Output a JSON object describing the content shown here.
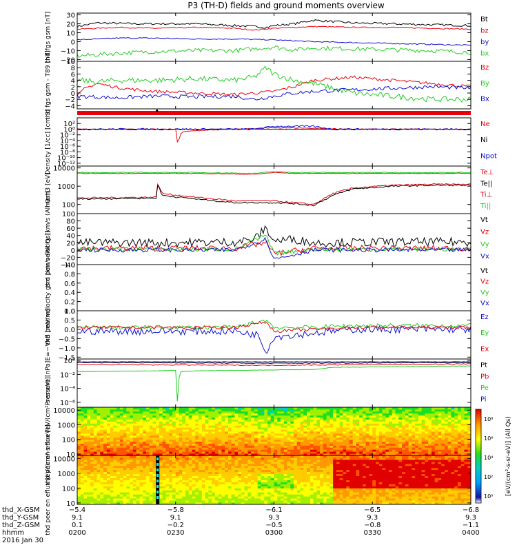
{
  "title": "P3 (TH-D) fields and ground moments overview",
  "colors": {
    "black": "#000000",
    "red": "#e8000b",
    "green": "#22cc22",
    "blue": "#1010d0"
  },
  "chart_data": [
    {
      "type": "line",
      "ylabel": "thd fgs gsm [nT]",
      "ylim": [
        -22,
        32
      ],
      "yticks": [
        {
          "v": 30,
          "t": "30"
        },
        {
          "v": 20,
          "t": "20"
        },
        {
          "v": 10,
          "t": "10"
        },
        {
          "v": 0,
          "t": "0"
        },
        {
          "v": -10,
          "t": "−10"
        },
        {
          "v": -20,
          "t": "−20"
        }
      ],
      "series": [
        {
          "name": "Bt",
          "color": "black",
          "x": [
            0,
            0.05,
            0.15,
            0.25,
            0.3,
            0.4,
            0.45,
            0.48,
            0.5,
            0.55,
            0.6,
            0.7,
            0.8,
            0.9,
            1
          ],
          "y": [
            17,
            21,
            20,
            20,
            20,
            18,
            17,
            16,
            18,
            20,
            24,
            21,
            20,
            19,
            18
          ],
          "noise": 1.2
        },
        {
          "name": "bz",
          "color": "red",
          "x": [
            0,
            0.1,
            0.2,
            0.3,
            0.4,
            0.45,
            0.5,
            0.55,
            0.6,
            0.7,
            0.8,
            0.9,
            1
          ],
          "y": [
            14,
            16,
            15,
            16,
            15,
            13,
            15,
            16,
            17,
            16,
            16,
            15,
            14
          ],
          "noise": 0.6
        },
        {
          "name": "by",
          "color": "blue",
          "x": [
            0,
            0.1,
            0.2,
            0.3,
            0.4,
            0.5,
            0.6,
            0.7,
            0.8,
            0.9,
            1
          ],
          "y": [
            2,
            4,
            4,
            3,
            3,
            2,
            0,
            -1,
            -2,
            -3,
            -4
          ],
          "noise": 0.6
        },
        {
          "name": "bx",
          "color": "green",
          "x": [
            0,
            0.1,
            0.2,
            0.3,
            0.4,
            0.45,
            0.5,
            0.55,
            0.6,
            0.7,
            0.8,
            0.9,
            1
          ],
          "y": [
            -16,
            -13,
            -11,
            -10,
            -10,
            -8,
            -6,
            -9,
            -7,
            -8,
            -9,
            -10,
            -12
          ],
          "noise": 2.4
        }
      ]
    },
    {
      "type": "line",
      "ylabel": "thd fgs gsm - T89 [nT]",
      "ylim": [
        -5,
        10
      ],
      "yticks": [
        {
          "v": 10,
          "t": "10"
        },
        {
          "v": 8,
          "t": "8"
        },
        {
          "v": 6,
          "t": "6"
        },
        {
          "v": 4,
          "t": "4"
        },
        {
          "v": 2,
          "t": "2"
        },
        {
          "v": 0,
          "t": "0"
        },
        {
          "v": -2,
          "t": "−2"
        },
        {
          "v": -4,
          "t": "−4"
        }
      ],
      "series": [
        {
          "name": "Bz",
          "color": "red",
          "x": [
            0,
            0.02,
            0.05,
            0.1,
            0.15,
            0.2,
            0.3,
            0.4,
            0.45,
            0.5,
            0.55,
            0.6,
            0.7,
            0.8,
            0.9,
            1
          ],
          "y": [
            -1,
            1.5,
            3,
            1.8,
            1,
            0.5,
            0,
            -0.5,
            0,
            0.5,
            2,
            4,
            5,
            4,
            3,
            2
          ],
          "noise": 0.5
        },
        {
          "name": "By",
          "color": "green",
          "x": [
            0,
            0.05,
            0.1,
            0.2,
            0.3,
            0.4,
            0.45,
            0.48,
            0.5,
            0.55,
            0.6,
            0.7,
            0.8,
            0.9,
            1
          ],
          "y": [
            4,
            3.5,
            4,
            4,
            4.5,
            4,
            5,
            8,
            6,
            4,
            3,
            0,
            -1,
            -2,
            -2
          ],
          "noise": 0.9
        },
        {
          "name": "Bx",
          "color": "blue",
          "x": [
            0,
            0.1,
            0.2,
            0.3,
            0.4,
            0.45,
            0.5,
            0.55,
            0.6,
            0.7,
            0.8,
            0.9,
            1
          ],
          "y": [
            -1,
            -1.5,
            -1,
            -1.2,
            -1,
            -2,
            -1,
            0,
            0.5,
            1,
            1.5,
            2,
            1.5
          ],
          "noise": 0.6
        }
      ]
    },
    {
      "type": "bar",
      "ylabel": "",
      "segments": [
        {
          "from": 0,
          "to": 1,
          "color": "red"
        }
      ],
      "marks": [
        {
          "from": 0.2,
          "to": 0.205,
          "color": "black"
        }
      ]
    },
    {
      "type": "line",
      "ylabel": "Density [1/cc] [cm-3]",
      "log": true,
      "ylim": [
        -13,
        4
      ],
      "yticks": [
        {
          "v": 2,
          "t": "10²"
        },
        {
          "v": 0,
          "t": "10⁰"
        },
        {
          "v": -2,
          "t": "10⁻²"
        },
        {
          "v": -4,
          "t": "10⁻⁴"
        },
        {
          "v": -6,
          "t": "10⁻⁶"
        },
        {
          "v": -8,
          "t": "10⁻⁸"
        },
        {
          "v": -10,
          "t": "10⁻¹⁰"
        },
        {
          "v": -12,
          "t": "10⁻¹²"
        }
      ],
      "series": [
        {
          "name": "Ne",
          "color": "red",
          "x": [
            0,
            0.25,
            0.255,
            0.265,
            0.3,
            0.4,
            0.5,
            0.6,
            0.7,
            0.8,
            1
          ],
          "y": [
            0,
            0,
            -5,
            -1,
            -0.5,
            0,
            0.5,
            0.3,
            0,
            0,
            0
          ],
          "noise": 0.15
        },
        {
          "name": "Ni",
          "color": "black",
          "x": [
            0,
            0.3,
            0.5,
            0.6,
            0.8,
            1
          ],
          "y": [
            0,
            0,
            0,
            0,
            0,
            0
          ],
          "noise": 0.05
        },
        {
          "name": "Npot",
          "color": "blue",
          "x": [
            0.45,
            0.5,
            0.55,
            0.6,
            0.65
          ],
          "y": [
            0,
            1,
            1,
            1,
            0
          ],
          "noise": 0.3
        }
      ]
    },
    {
      "type": "line",
      "ylabel": "mom3 [eV]",
      "log": true,
      "ylim": [
        1.5,
        4.1
      ],
      "yticks": [
        {
          "v": 4,
          "t": "10000"
        },
        {
          "v": 3,
          "t": "1000"
        },
        {
          "v": 2,
          "t": "100"
        }
      ],
      "series": [
        {
          "name": "Te⊥",
          "color": "red",
          "x": [
            0,
            0.2,
            0.205,
            0.215,
            0.3,
            0.4,
            0.5,
            0.55,
            0.6,
            0.65,
            0.7,
            0.8,
            0.9,
            1
          ],
          "y": [
            2.35,
            2.4,
            3.2,
            2.6,
            2.4,
            2.2,
            2.2,
            2.1,
            2.0,
            2.6,
            2.9,
            3.05,
            3.1,
            3.1
          ],
          "noise": 0.04
        },
        {
          "name": "Te||",
          "color": "black",
          "x": [
            0,
            0.2,
            0.205,
            0.215,
            0.3,
            0.4,
            0.5,
            0.55,
            0.6,
            0.65,
            0.7,
            0.8,
            0.9,
            1
          ],
          "y": [
            2.3,
            2.35,
            3.1,
            2.5,
            2.3,
            2.1,
            2.1,
            2.05,
            1.95,
            2.5,
            2.85,
            3.0,
            3.05,
            3.05
          ],
          "noise": 0.04
        },
        {
          "name": "Ti⊥",
          "color": "red",
          "x": [
            0,
            0.3,
            0.45,
            0.5,
            0.55,
            0.6,
            1
          ],
          "y": [
            3.7,
            3.7,
            3.65,
            3.75,
            3.7,
            3.7,
            3.7
          ],
          "noise": 0.02
        },
        {
          "name": "Ti||",
          "color": "green",
          "x": [
            0,
            0.3,
            0.45,
            0.5,
            0.55,
            0.6,
            1
          ],
          "y": [
            3.75,
            3.75,
            3.7,
            3.8,
            3.75,
            3.75,
            3.75
          ],
          "noise": 0.02
        }
      ]
    },
    {
      "type": "line",
      "ylabel": "thd peir velocity [km/s (All Qs)]",
      "ylim": [
        -40,
        100
      ],
      "yticks": [
        {
          "v": 100,
          "t": "100"
        },
        {
          "v": 80,
          "t": "80"
        },
        {
          "v": 60,
          "t": "60"
        },
        {
          "v": 40,
          "t": "40"
        },
        {
          "v": 20,
          "t": "20"
        },
        {
          "v": 0,
          "t": "0"
        },
        {
          "v": -20,
          "t": "−20"
        },
        {
          "v": -40,
          "t": "−40"
        }
      ],
      "series": [
        {
          "name": "Vt",
          "color": "black",
          "x": [
            0,
            0.2,
            0.4,
            0.45,
            0.48,
            0.5,
            0.55,
            0.6,
            0.8,
            1
          ],
          "y": [
            20,
            20,
            22,
            30,
            60,
            25,
            30,
            20,
            22,
            22
          ],
          "noise": 12
        },
        {
          "name": "Vz",
          "color": "red",
          "x": [
            0,
            0.4,
            0.48,
            0.5,
            0.6,
            1
          ],
          "y": [
            5,
            5,
            20,
            -10,
            5,
            5
          ],
          "noise": 8
        },
        {
          "name": "Vy",
          "color": "green",
          "x": [
            0,
            0.4,
            0.48,
            0.5,
            0.6,
            1
          ],
          "y": [
            2,
            2,
            40,
            -10,
            2,
            2
          ],
          "noise": 6
        },
        {
          "name": "Vx",
          "color": "blue",
          "x": [
            0,
            0.4,
            0.48,
            0.5,
            0.6,
            1
          ],
          "y": [
            0,
            0,
            30,
            -25,
            0,
            0
          ],
          "noise": 6
        }
      ]
    },
    {
      "type": "line",
      "ylabel": "thd peer velocity gsm [km/s (All Qs)]",
      "ylim": [
        0,
        1
      ],
      "yticks": [
        {
          "v": 1,
          "t": "1.0"
        },
        {
          "v": 0.8,
          "t": "0.8"
        },
        {
          "v": 0.6,
          "t": "0.6"
        },
        {
          "v": 0.4,
          "t": "0.4"
        },
        {
          "v": 0.2,
          "t": "0.2"
        },
        {
          "v": 0,
          "t": "0.0"
        }
      ],
      "series": [
        {
          "name": "Vt",
          "color": "black",
          "x": [],
          "y": [],
          "noise": 0
        },
        {
          "name": "Vz",
          "color": "red",
          "x": [],
          "y": [],
          "noise": 0
        },
        {
          "name": "Vy",
          "color": "green",
          "x": [],
          "y": [],
          "noise": 0
        },
        {
          "name": "Vx",
          "color": "blue",
          "x": [],
          "y": [],
          "noise": 0
        }
      ]
    },
    {
      "type": "line",
      "ylabel": "E=−VxB [mV/m]",
      "ylim": [
        -1.6,
        1.0
      ],
      "yticks": [
        {
          "v": 1.0,
          "t": "1.0"
        },
        {
          "v": 0.5,
          "t": "0.5"
        },
        {
          "v": 0,
          "t": "0.0"
        },
        {
          "v": -0.5,
          "t": "−0.5"
        },
        {
          "v": -1.0,
          "t": "−1.0"
        },
        {
          "v": -1.5,
          "t": "−1.5"
        }
      ],
      "series": [
        {
          "name": "Ez",
          "color": "blue",
          "x": [
            0,
            0.4,
            0.46,
            0.48,
            0.5,
            0.6,
            0.7,
            0.8,
            1
          ],
          "y": [
            -0.1,
            -0.1,
            -0.3,
            -1.2,
            -0.4,
            -0.2,
            0,
            0,
            0
          ],
          "noise": 0.2
        },
        {
          "name": "Ey",
          "color": "green",
          "x": [
            0,
            0.4,
            0.48,
            0.5,
            0.6,
            0.7,
            1
          ],
          "y": [
            0.1,
            0.1,
            0.5,
            0.1,
            0.1,
            0.2,
            0.2
          ],
          "noise": 0.12
        },
        {
          "name": "Ex",
          "color": "red",
          "x": [
            0,
            0.4,
            0.48,
            0.5,
            0.6,
            0.7,
            1
          ],
          "y": [
            0.1,
            0.1,
            0.4,
            -0.1,
            0,
            0.1,
            0.1
          ],
          "noise": 0.08
        }
      ]
    },
    {
      "type": "line",
      "ylabel": "Pressure [nPa]",
      "log": true,
      "ylim": [
        -6.7,
        0.2
      ],
      "yticks": [
        {
          "v": 0,
          "t": "10⁰"
        },
        {
          "v": -2,
          "t": "10⁻²"
        },
        {
          "v": -4,
          "t": "10⁻⁴"
        },
        {
          "v": -6,
          "t": "10⁻⁶"
        }
      ],
      "series": [
        {
          "name": "Pt",
          "color": "black",
          "x": [
            0,
            0.5,
            1
          ],
          "y": [
            -0.3,
            -0.4,
            -0.3
          ],
          "noise": 0.05
        },
        {
          "name": "Pb",
          "color": "red",
          "x": [
            0,
            0.5,
            1
          ],
          "y": [
            -0.6,
            -0.7,
            -0.5
          ],
          "noise": 0.05
        },
        {
          "name": "Pe",
          "color": "green",
          "x": [
            0,
            0.2,
            0.25,
            0.255,
            0.26,
            0.3,
            0.6,
            0.65,
            1
          ],
          "y": [
            -1.6,
            -1.5,
            -1.4,
            -6.3,
            -1.6,
            -1.5,
            -1.3,
            -1.0,
            -0.8
          ],
          "noise": 0.03
        },
        {
          "name": "Pi",
          "color": "blue",
          "x": [
            0,
            1
          ],
          "y": [
            -0.2,
            -0.2
          ],
          "noise": 0.03
        }
      ]
    },
    {
      "type": "heatmap",
      "ylabel": "thd peir en eflux [eV/(cm²-s-sr-eV)]",
      "log": true,
      "ylim": [
        0.9,
        4.2
      ],
      "yticks": [
        {
          "v": 4,
          "t": "10000"
        },
        {
          "v": 3,
          "t": "1000"
        },
        {
          "v": 2,
          "t": "100"
        },
        {
          "v": 1,
          "t": "10"
        }
      ]
    },
    {
      "type": "heatmap",
      "ylabel": "thd peer en eflux [eV/(cm²-s-sr-eV)]",
      "log": true,
      "ylim": [
        0.9,
        4.2
      ],
      "yticks": [
        {
          "v": 4,
          "t": "10000"
        },
        {
          "v": 3,
          "t": "1000"
        },
        {
          "v": 2,
          "t": "100"
        },
        {
          "v": 1,
          "t": "10"
        }
      ]
    }
  ],
  "colorbar": {
    "ticks": [
      "10⁸",
      "10⁶",
      "10⁴",
      "10²",
      "10⁰"
    ],
    "label": "[eV/(cm²-s-sr-eV)] (All Qs)"
  },
  "xaxis": {
    "rows": [
      {
        "label": "thd_X-GSM",
        "values": [
          "−5.4",
          "−5.8",
          "−6.1",
          "−6.5",
          "−6.8"
        ]
      },
      {
        "label": "thd_Y-GSM",
        "values": [
          "9.1",
          "9.1",
          "9.3",
          "9.3",
          "9.3"
        ]
      },
      {
        "label": "thd_Z-GSM",
        "values": [
          "0.1",
          "−0.2",
          "−0.5",
          "−0.8",
          "−1.1"
        ]
      },
      {
        "label": "hhmm",
        "values": [
          "0200",
          "0230",
          "0300",
          "0330",
          "0400"
        ]
      }
    ],
    "date": "2016 Jan 30"
  }
}
